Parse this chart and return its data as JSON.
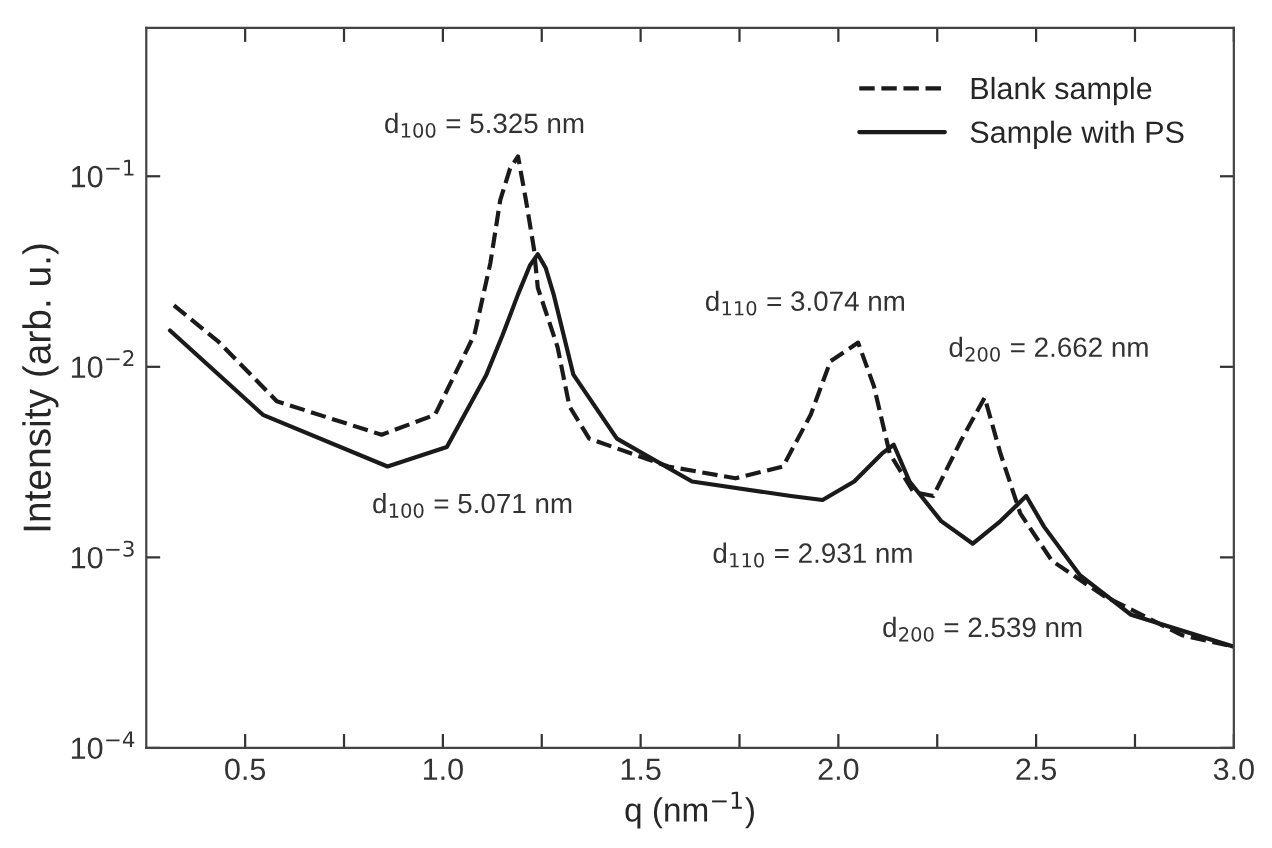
{
  "chart_data": {
    "type": "line",
    "xlabel": "q (nm$^{−1}$)",
    "ylabel": "Intensity (arb. u.)",
    "log": "y",
    "xlim": [
      0.25,
      3.0
    ],
    "ylim": [
      0.0001,
      0.6
    ],
    "xticks": [
      0.5,
      {
        "value": 0.75,
        "label": null
      },
      {
        "value": 1,
        "label": "1.0"
      },
      {
        "value": 1.25,
        "label": null
      },
      1.5,
      {
        "value": 1.75,
        "label": null
      },
      {
        "value": 2,
        "label": "2.0"
      },
      {
        "value": 2.25,
        "label": null
      },
      2.5,
      {
        "value": 2.75,
        "label": null
      },
      {
        "value": 3,
        "label": "3.0"
      }
    ],
    "yticks": [
      {
        "value": 0.0001,
        "label": "10$^{−4}$"
      },
      {
        "value": 0.001,
        "label": "10$^{−3}$"
      },
      {
        "value": 0.01,
        "label": "10$^{−2}$"
      },
      {
        "value": 0.1,
        "label": "10$^{−1}$"
      }
    ],
    "legend": "top right",
    "grid": false,
    "series": [
      {
        "name": "Blank sample",
        "color": "#1a1a1a",
        "line_style": "dashed",
        "x": [
          0.32,
          0.43,
          0.58,
          0.845,
          0.98,
          1.08,
          1.12,
          1.145,
          1.17,
          1.19,
          1.21,
          1.23,
          1.24,
          1.29,
          1.32,
          1.37,
          1.57,
          1.74,
          1.86,
          1.93,
          1.98,
          2.05,
          2.09,
          2.13,
          2.19,
          2.24,
          2.31,
          2.37,
          2.41,
          2.46,
          2.54,
          2.67,
          2.87,
          3.0
        ],
        "values": [
          0.021,
          0.0137,
          0.0066,
          0.0044,
          0.0056,
          0.0148,
          0.035,
          0.075,
          0.11,
          0.127,
          0.075,
          0.042,
          0.026,
          0.0127,
          0.0062,
          0.0042,
          0.003,
          0.0026,
          0.003,
          0.0056,
          0.0107,
          0.0134,
          0.0079,
          0.0035,
          0.0022,
          0.0021,
          0.0041,
          0.0069,
          0.0035,
          0.0017,
          0.00096,
          0.00063,
          0.00039,
          0.00034
        ]
      },
      {
        "name": "Sample with PS",
        "color": "#1a1a1a",
        "line_style": "solid",
        "x": [
          0.31,
          0.545,
          0.86,
          1.01,
          1.11,
          1.15,
          1.19,
          1.22,
          1.24,
          1.26,
          1.28,
          1.33,
          1.44,
          1.63,
          1.88,
          1.96,
          2.04,
          2.11,
          2.14,
          2.18,
          2.26,
          2.34,
          2.41,
          2.475,
          2.52,
          2.61,
          2.74,
          3.0
        ],
        "values": [
          0.0155,
          0.0056,
          0.003,
          0.0038,
          0.0091,
          0.0145,
          0.024,
          0.034,
          0.039,
          0.033,
          0.024,
          0.0091,
          0.0042,
          0.0025,
          0.0021,
          0.002,
          0.0025,
          0.0035,
          0.0039,
          0.0025,
          0.00155,
          0.00118,
          0.00155,
          0.0021,
          0.00145,
          0.00081,
          0.0005,
          0.00034
        ]
      }
    ],
    "annotations": [
      "d$_{100}$ = 5.325 nm",
      "d$_{100}$ = 5.071 nm",
      "d$_{110}$ = 3.074 nm",
      "d$_{200}$ = 2.662 nm",
      "d$_{110}$ = 2.931 nm",
      "d$_{200}$ = 2.539 nm"
    ]
  }
}
